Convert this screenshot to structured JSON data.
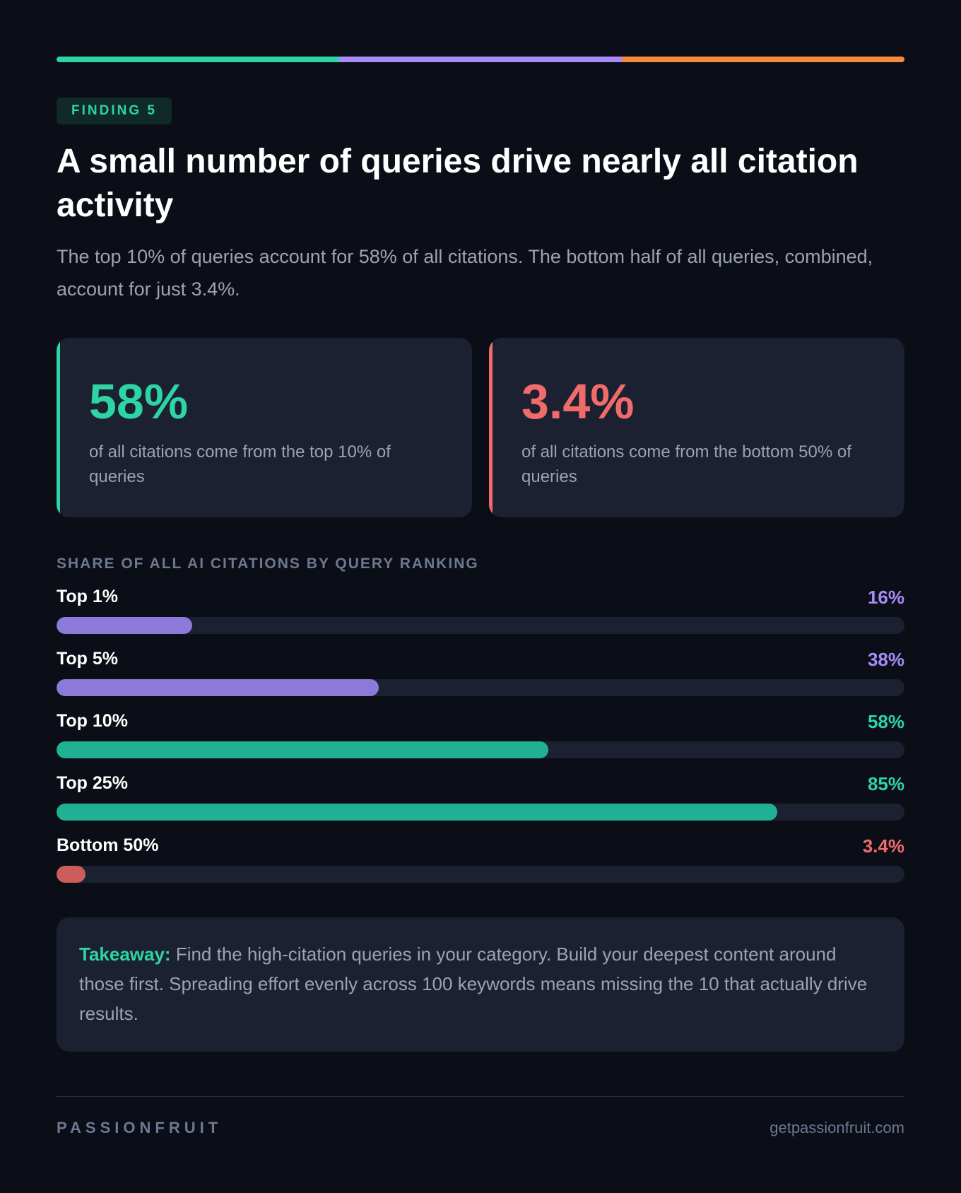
{
  "colors": {
    "accent_green": "#2dd4a4",
    "accent_purple": "#a78bfa",
    "accent_orange": "#f78b3c",
    "accent_red": "#f16b6b",
    "bar_purple": "#8b7ad8",
    "bar_green": "#20b194",
    "bar_red": "#cd5d5d"
  },
  "header": {
    "badge": "FINDING 5",
    "title": "A small number of queries drive nearly all citation activity",
    "subtitle": "The top 10% of queries account for 58% of all citations. The bottom half of all queries, combined, account for just 3.4%."
  },
  "stats": [
    {
      "value": "58%",
      "description": "of all citations come from the top 10% of queries"
    },
    {
      "value": "3.4%",
      "description": "of all citations come from the bottom 50% of queries"
    }
  ],
  "chart_data": {
    "type": "bar",
    "orientation": "horizontal",
    "title": "SHARE OF ALL AI CITATIONS BY QUERY RANKING",
    "categories": [
      "Top 1%",
      "Top 5%",
      "Top 10%",
      "Top 25%",
      "Bottom 50%"
    ],
    "values": [
      16,
      38,
      58,
      85,
      3.4
    ],
    "value_labels": [
      "16%",
      "38%",
      "58%",
      "85%",
      "3.4%"
    ],
    "xlim": [
      0,
      100
    ],
    "bar_colors": [
      "#8b7ad8",
      "#8b7ad8",
      "#20b194",
      "#20b194",
      "#cd5d5d"
    ],
    "label_colors": [
      "#a78bfa",
      "#a78bfa",
      "#2dd4a4",
      "#2dd4a4",
      "#f16b6b"
    ]
  },
  "takeaway": {
    "lead": "Takeaway:",
    "text": " Find the high-citation queries in your category. Build your deepest content around those first. Spreading effort evenly across 100 keywords means missing the 10 that actually drive results."
  },
  "footer": {
    "brand": "PASSIONFRUIT",
    "site": "getpassionfruit.com"
  }
}
